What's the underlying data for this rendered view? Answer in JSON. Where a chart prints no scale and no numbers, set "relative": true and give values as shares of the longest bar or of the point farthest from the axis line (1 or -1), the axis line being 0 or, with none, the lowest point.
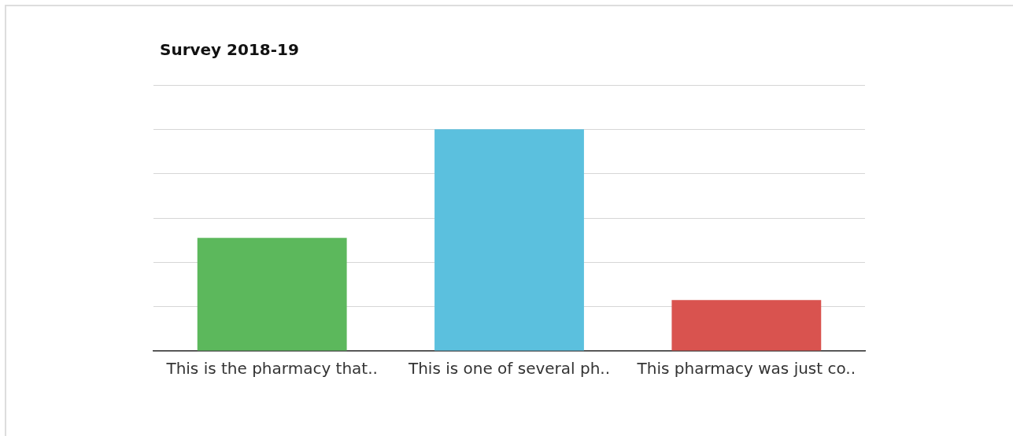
{
  "chart_data": {
    "type": "bar",
    "title": "Survey 2018-19",
    "relative": true,
    "grid": "y",
    "categories": [
      "This is the pharmacy that..",
      "This is one of several ph..",
      "This pharmacy was just co.."
    ],
    "values": [
      0.51,
      1,
      0.23
    ],
    "colors": [
      "#5cb85c",
      "#5bc0de",
      "#d9534f"
    ]
  }
}
